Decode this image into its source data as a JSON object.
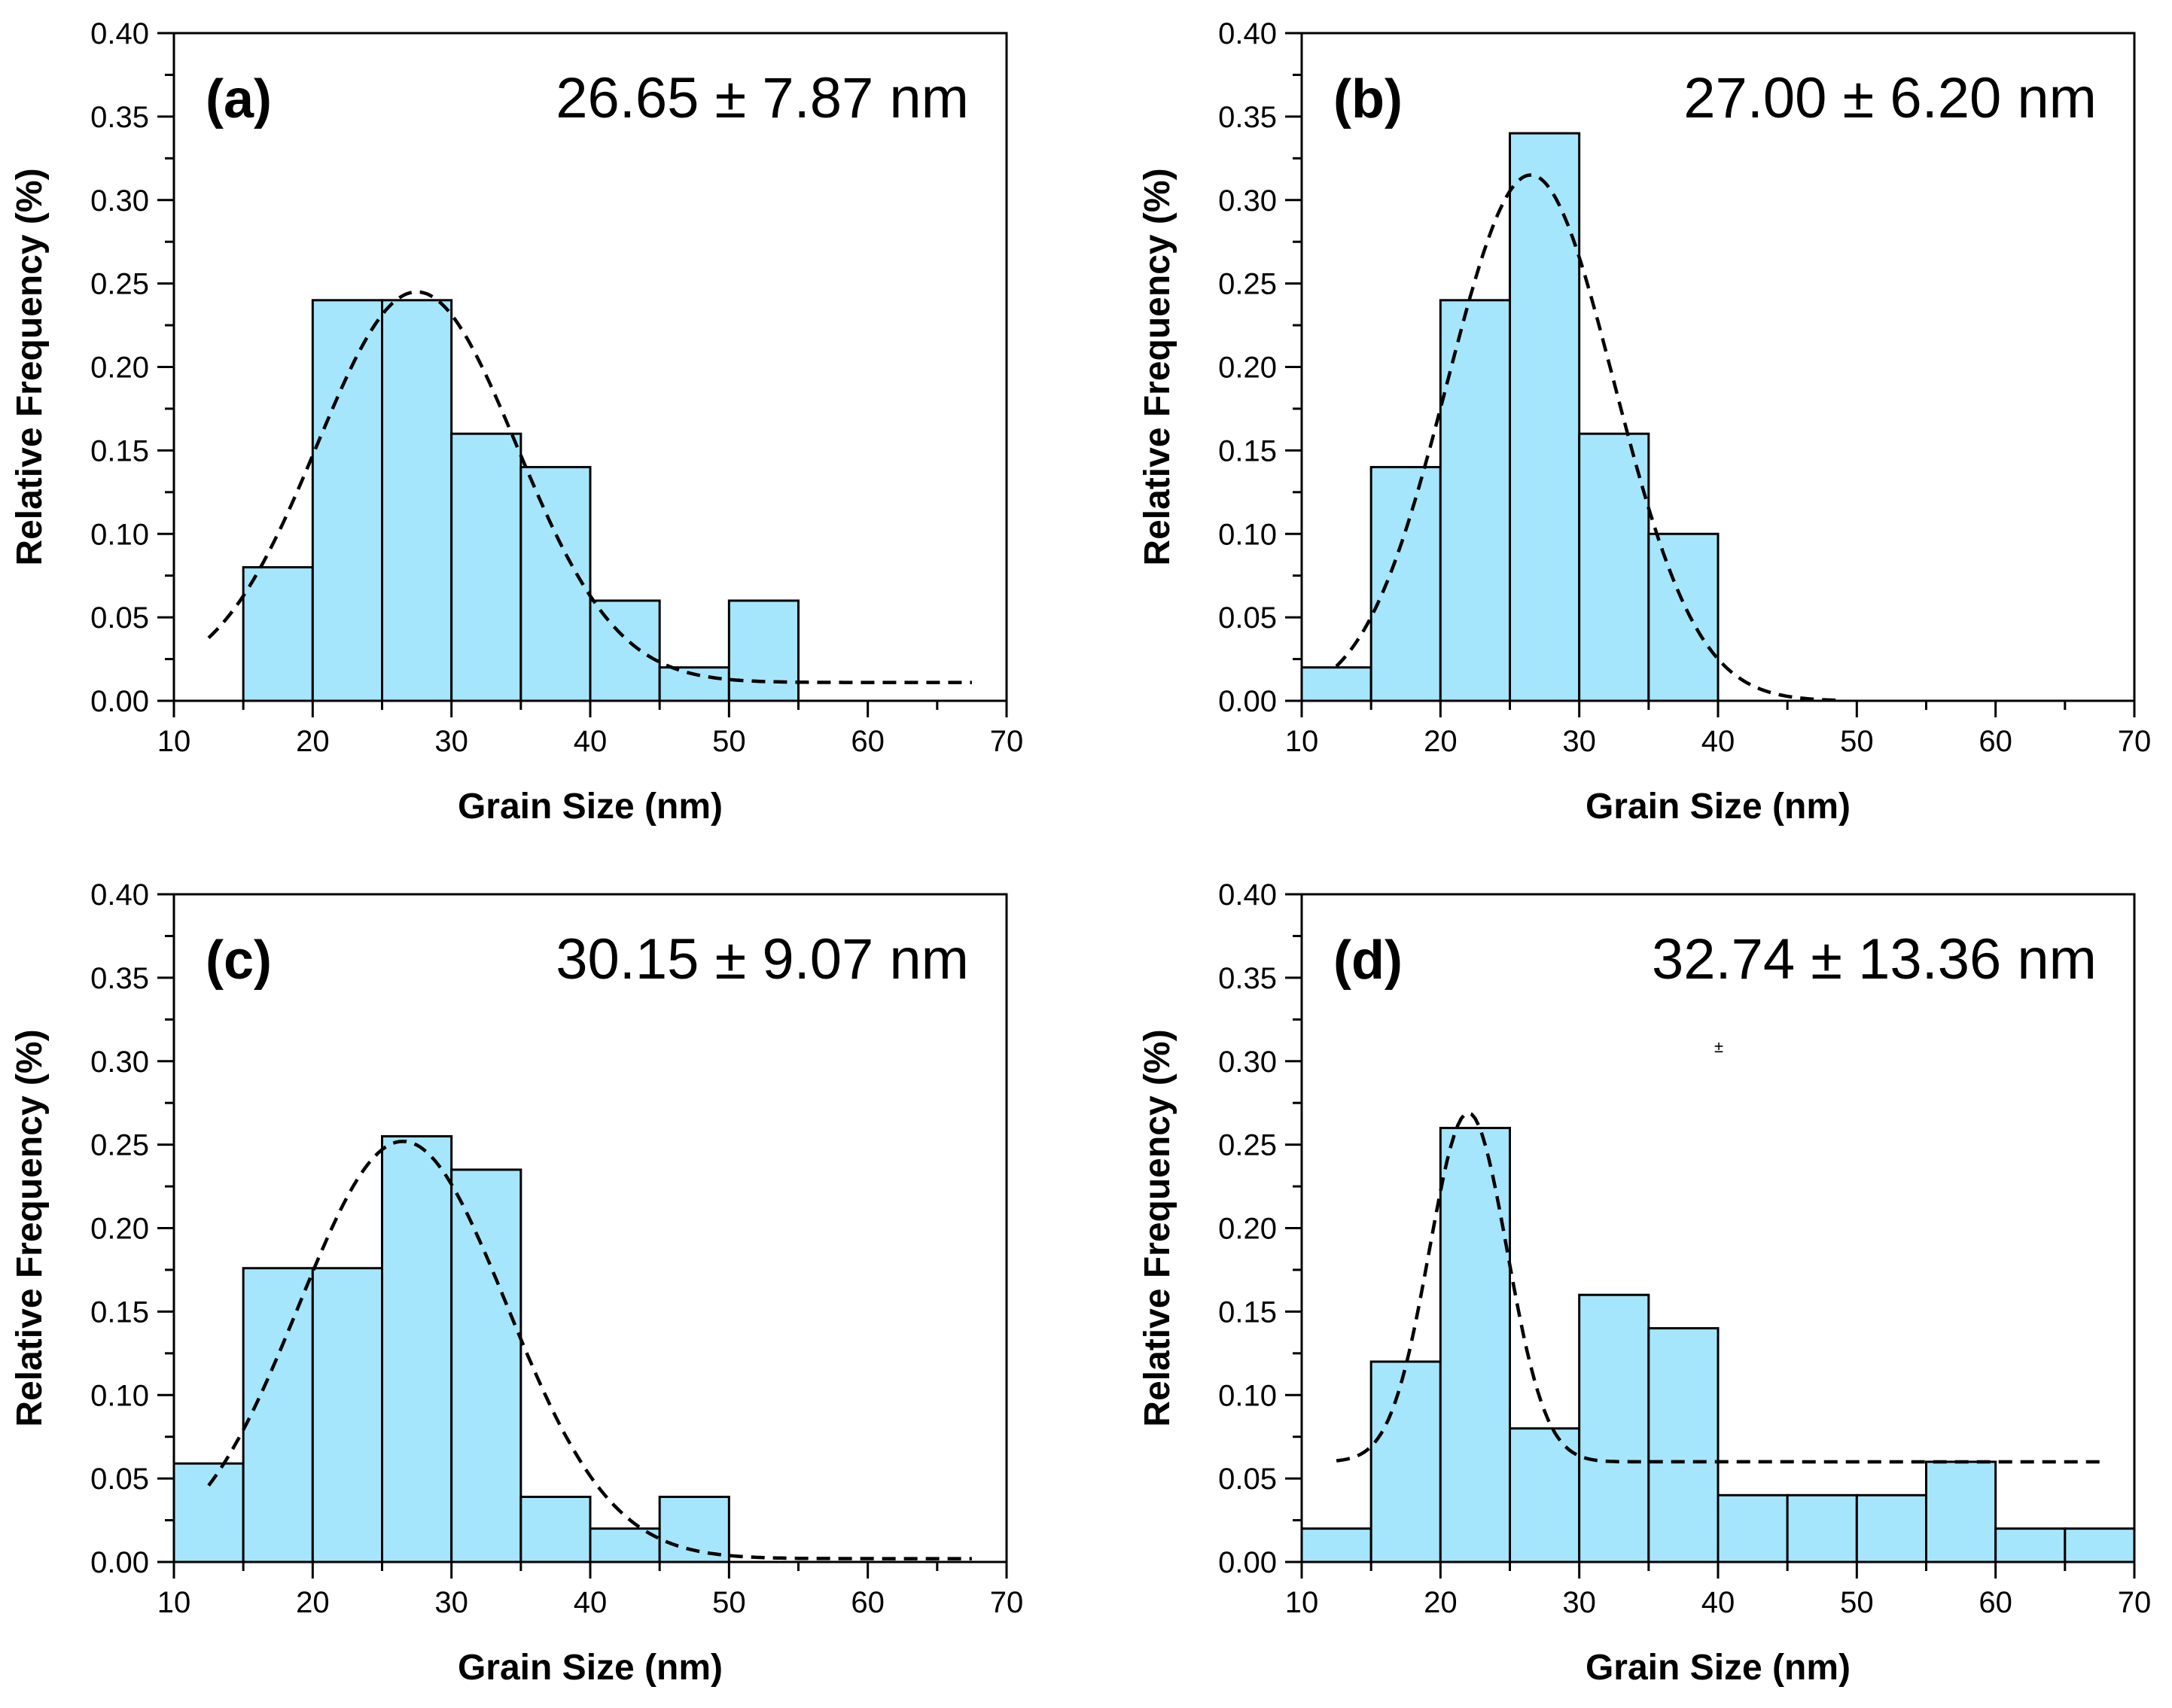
{
  "figure": {
    "xlabel": "Grain Size (nm)",
    "ylabel": "Relative Frequency (%)",
    "stray_mark": "±"
  },
  "chart_data": [
    {
      "type": "bar",
      "panel": "(a)",
      "stat_text": "26.65 ± 7.87 nm",
      "xlabel": "Grain Size (nm)",
      "ylabel": "Relative Frequency (%)",
      "xlim": [
        10,
        70
      ],
      "ylim": [
        0,
        0.4
      ],
      "xticks": [
        "10",
        "20",
        "30",
        "40",
        "50",
        "60",
        "70"
      ],
      "yticks": [
        "0.00",
        "0.05",
        "0.10",
        "0.15",
        "0.20",
        "0.25",
        "0.30",
        "0.35",
        "0.40"
      ],
      "bins": [
        [
          15,
          20
        ],
        [
          20,
          25
        ],
        [
          25,
          30
        ],
        [
          30,
          35
        ],
        [
          35,
          40
        ],
        [
          40,
          45
        ],
        [
          45,
          50
        ],
        [
          50,
          55
        ]
      ],
      "values": [
        0.08,
        0.24,
        0.24,
        0.16,
        0.14,
        0.06,
        0.02,
        0.06
      ],
      "fit": {
        "type": "gaussian",
        "mean": 27.5,
        "sigma": 7.2,
        "amplitude": 0.234,
        "offset": 0.011,
        "x_range": [
          12.5,
          67.5
        ]
      },
      "grid": false,
      "legend": "none"
    },
    {
      "type": "bar",
      "panel": "(b)",
      "stat_text": "27.00 ± 6.20 nm",
      "xlabel": "Grain Size (nm)",
      "ylabel": "Relative Frequency (%)",
      "xlim": [
        10,
        70
      ],
      "ylim": [
        0,
        0.4
      ],
      "xticks": [
        "10",
        "20",
        "30",
        "40",
        "50",
        "60",
        "70"
      ],
      "yticks": [
        "0.00",
        "0.05",
        "0.10",
        "0.15",
        "0.20",
        "0.25",
        "0.30",
        "0.35",
        "0.40"
      ],
      "bins": [
        [
          10,
          15
        ],
        [
          15,
          20
        ],
        [
          20,
          25
        ],
        [
          25,
          30
        ],
        [
          30,
          35
        ],
        [
          35,
          40
        ]
      ],
      "values": [
        0.02,
        0.14,
        0.24,
        0.34,
        0.16,
        0.1
      ],
      "fit": {
        "type": "gaussian",
        "mean": 26.5,
        "sigma": 6.0,
        "amplitude": 0.315,
        "offset": 0.0,
        "x_range": [
          12.5,
          48.5
        ]
      },
      "grid": false,
      "legend": "none"
    },
    {
      "type": "bar",
      "panel": "(c)",
      "stat_text": "30.15 ± 9.07 nm",
      "xlabel": "Grain Size (nm)",
      "ylabel": "Relative Frequency (%)",
      "xlim": [
        10,
        70
      ],
      "ylim": [
        0,
        0.4
      ],
      "xticks": [
        "10",
        "20",
        "30",
        "40",
        "50",
        "60",
        "70"
      ],
      "yticks": [
        "0.00",
        "0.05",
        "0.10",
        "0.15",
        "0.20",
        "0.25",
        "0.30",
        "0.35",
        "0.40"
      ],
      "bins": [
        [
          10,
          15
        ],
        [
          15,
          20
        ],
        [
          20,
          25
        ],
        [
          25,
          30
        ],
        [
          30,
          35
        ],
        [
          35,
          40
        ],
        [
          40,
          45
        ],
        [
          45,
          50
        ]
      ],
      "values": [
        0.059,
        0.176,
        0.176,
        0.255,
        0.235,
        0.039,
        0.02,
        0.039
      ],
      "fit": {
        "type": "gaussian",
        "mean": 26.5,
        "sigma": 7.5,
        "amplitude": 0.25,
        "offset": 0.002,
        "x_range": [
          12.5,
          67.5
        ]
      },
      "grid": false,
      "legend": "none"
    },
    {
      "type": "bar",
      "panel": "(d)",
      "stat_text": "32.74 ± 13.36 nm",
      "xlabel": "Grain Size (nm)",
      "ylabel": "Relative Frequency (%)",
      "xlim": [
        10,
        70
      ],
      "ylim": [
        0,
        0.4
      ],
      "xticks": [
        "10",
        "20",
        "30",
        "40",
        "50",
        "60",
        "70"
      ],
      "yticks": [
        "0.00",
        "0.05",
        "0.10",
        "0.15",
        "0.20",
        "0.25",
        "0.30",
        "0.35",
        "0.40"
      ],
      "bins": [
        [
          10,
          15
        ],
        [
          15,
          20
        ],
        [
          20,
          25
        ],
        [
          25,
          30
        ],
        [
          30,
          35
        ],
        [
          35,
          40
        ],
        [
          40,
          45
        ],
        [
          45,
          50
        ],
        [
          50,
          55
        ],
        [
          55,
          60
        ],
        [
          60,
          65
        ],
        [
          65,
          70
        ]
      ],
      "values": [
        0.02,
        0.12,
        0.26,
        0.08,
        0.16,
        0.14,
        0.04,
        0.04,
        0.04,
        0.06,
        0.02,
        0.02
      ],
      "fit": {
        "type": "gaussian",
        "mean": 22.0,
        "sigma": 2.8,
        "amplitude": 0.209,
        "offset": 0.06,
        "x_range": [
          12.5,
          67.5
        ]
      },
      "grid": false,
      "legend": "none"
    }
  ]
}
